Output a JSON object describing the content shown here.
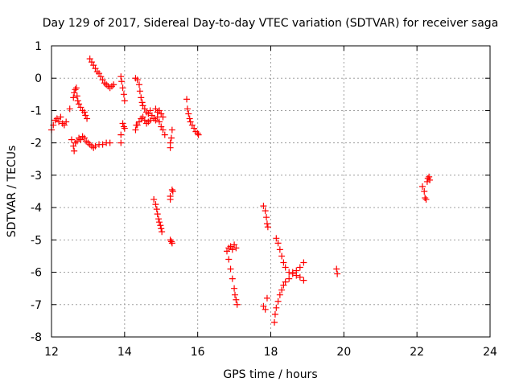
{
  "chart_data": {
    "type": "scatter",
    "title": "Day 129 of 2017, Sidereal Day-to-day VTEC variation (SDTVAR) for receiver saga",
    "xlabel": "GPS time / hours",
    "ylabel": "SDTVAR / TECUs",
    "xlim": [
      12,
      24
    ],
    "ylim": [
      -8,
      1
    ],
    "xticks": [
      12,
      14,
      16,
      18,
      20,
      22,
      24
    ],
    "yticks": [
      1,
      0,
      -1,
      -2,
      -3,
      -4,
      -5,
      -6,
      -7,
      -8
    ],
    "grid": true,
    "marker": "+",
    "color": "#ff0000",
    "series": [
      {
        "name": "SDTVAR",
        "points": [
          [
            12.0,
            -1.6
          ],
          [
            12.05,
            -1.45
          ],
          [
            12.1,
            -1.3
          ],
          [
            12.15,
            -1.25
          ],
          [
            12.2,
            -1.35
          ],
          [
            12.25,
            -1.2
          ],
          [
            12.3,
            -1.4
          ],
          [
            12.35,
            -1.45
          ],
          [
            12.4,
            -1.35
          ],
          [
            12.55,
            -1.9
          ],
          [
            12.6,
            -2.1
          ],
          [
            12.62,
            -2.25
          ],
          [
            12.65,
            -2.0
          ],
          [
            12.7,
            -1.95
          ],
          [
            12.75,
            -1.85
          ],
          [
            12.8,
            -1.9
          ],
          [
            12.85,
            -1.8
          ],
          [
            12.9,
            -1.85
          ],
          [
            12.95,
            -1.95
          ],
          [
            13.0,
            -2.0
          ],
          [
            13.05,
            -2.05
          ],
          [
            13.1,
            -2.1
          ],
          [
            13.15,
            -2.15
          ],
          [
            13.2,
            -2.1
          ],
          [
            13.3,
            -2.05
          ],
          [
            13.4,
            -2.05
          ],
          [
            13.5,
            -2.0
          ],
          [
            13.6,
            -2.0
          ],
          [
            12.6,
            -0.6
          ],
          [
            12.62,
            -0.45
          ],
          [
            12.65,
            -0.35
          ],
          [
            12.68,
            -0.3
          ],
          [
            12.7,
            -0.55
          ],
          [
            12.72,
            -0.7
          ],
          [
            12.75,
            -0.8
          ],
          [
            12.8,
            -0.9
          ],
          [
            12.85,
            -1.0
          ],
          [
            12.9,
            -1.05
          ],
          [
            12.93,
            -1.15
          ],
          [
            12.97,
            -1.25
          ],
          [
            12.5,
            -0.95
          ],
          [
            13.05,
            0.6
          ],
          [
            13.1,
            0.5
          ],
          [
            13.15,
            0.4
          ],
          [
            13.2,
            0.3
          ],
          [
            13.25,
            0.2
          ],
          [
            13.3,
            0.15
          ],
          [
            13.35,
            0.05
          ],
          [
            13.4,
            -0.05
          ],
          [
            13.45,
            -0.15
          ],
          [
            13.5,
            -0.2
          ],
          [
            13.55,
            -0.25
          ],
          [
            13.6,
            -0.3
          ],
          [
            13.65,
            -0.25
          ],
          [
            13.7,
            -0.2
          ],
          [
            13.9,
            0.05
          ],
          [
            13.92,
            -0.1
          ],
          [
            13.95,
            -0.3
          ],
          [
            13.98,
            -0.5
          ],
          [
            14.0,
            -0.7
          ],
          [
            13.95,
            -1.4
          ],
          [
            13.98,
            -1.5
          ],
          [
            14.0,
            -1.55
          ],
          [
            13.9,
            -1.75
          ],
          [
            13.9,
            -2.0
          ],
          [
            14.3,
            0.0
          ],
          [
            14.35,
            -0.05
          ],
          [
            14.4,
            -0.2
          ],
          [
            14.42,
            -0.4
          ],
          [
            14.45,
            -0.6
          ],
          [
            14.48,
            -0.75
          ],
          [
            14.5,
            -0.85
          ],
          [
            14.55,
            -0.95
          ],
          [
            14.6,
            -1.05
          ],
          [
            14.65,
            -1.1
          ],
          [
            14.7,
            -1.0
          ],
          [
            14.75,
            -1.15
          ],
          [
            14.8,
            -1.25
          ],
          [
            14.85,
            -1.3
          ],
          [
            14.9,
            -1.2
          ],
          [
            14.95,
            -1.0
          ],
          [
            15.0,
            -1.1
          ],
          [
            15.05,
            -1.2
          ],
          [
            14.35,
            -1.45
          ],
          [
            14.4,
            -1.35
          ],
          [
            14.45,
            -1.25
          ],
          [
            14.5,
            -1.2
          ],
          [
            14.55,
            -1.3
          ],
          [
            14.6,
            -1.4
          ],
          [
            14.65,
            -1.35
          ],
          [
            14.7,
            -1.3
          ],
          [
            14.3,
            -1.6
          ],
          [
            14.32,
            -1.45
          ],
          [
            14.85,
            -0.95
          ],
          [
            14.9,
            -1.05
          ],
          [
            14.95,
            -1.35
          ],
          [
            15.0,
            -1.5
          ],
          [
            15.05,
            -1.6
          ],
          [
            15.1,
            -1.75
          ],
          [
            15.3,
            -1.6
          ],
          [
            15.28,
            -1.85
          ],
          [
            15.25,
            -2.0
          ],
          [
            15.25,
            -2.15
          ],
          [
            15.3,
            -3.45
          ],
          [
            15.32,
            -3.5
          ],
          [
            15.25,
            -3.65
          ],
          [
            15.25,
            -3.75
          ],
          [
            15.25,
            -5.0
          ],
          [
            15.28,
            -5.05
          ],
          [
            15.3,
            -5.1
          ],
          [
            14.8,
            -3.75
          ],
          [
            14.85,
            -3.9
          ],
          [
            14.88,
            -4.05
          ],
          [
            14.9,
            -4.2
          ],
          [
            14.93,
            -4.35
          ],
          [
            14.95,
            -4.45
          ],
          [
            14.98,
            -4.55
          ],
          [
            15.0,
            -4.65
          ],
          [
            15.02,
            -4.75
          ],
          [
            15.7,
            -0.65
          ],
          [
            15.72,
            -0.95
          ],
          [
            15.75,
            -1.1
          ],
          [
            15.78,
            -1.25
          ],
          [
            15.8,
            -1.35
          ],
          [
            15.85,
            -1.45
          ],
          [
            15.9,
            -1.55
          ],
          [
            15.95,
            -1.65
          ],
          [
            16.0,
            -1.7
          ],
          [
            16.02,
            -1.75
          ],
          [
            16.8,
            -5.35
          ],
          [
            16.85,
            -5.25
          ],
          [
            16.9,
            -5.2
          ],
          [
            16.95,
            -5.3
          ],
          [
            17.0,
            -5.15
          ],
          [
            17.05,
            -5.25
          ],
          [
            16.85,
            -5.6
          ],
          [
            16.9,
            -5.9
          ],
          [
            16.95,
            -6.2
          ],
          [
            17.0,
            -6.5
          ],
          [
            17.02,
            -6.7
          ],
          [
            17.05,
            -6.85
          ],
          [
            17.08,
            -7.0
          ],
          [
            17.8,
            -3.95
          ],
          [
            17.85,
            -4.1
          ],
          [
            17.88,
            -4.3
          ],
          [
            17.9,
            -4.5
          ],
          [
            17.92,
            -4.6
          ],
          [
            17.8,
            -7.05
          ],
          [
            17.85,
            -7.15
          ],
          [
            17.9,
            -6.8
          ],
          [
            18.1,
            -7.55
          ],
          [
            18.12,
            -7.3
          ],
          [
            18.15,
            -7.1
          ],
          [
            18.2,
            -6.9
          ],
          [
            18.25,
            -6.7
          ],
          [
            18.3,
            -6.55
          ],
          [
            18.35,
            -6.4
          ],
          [
            18.4,
            -6.3
          ],
          [
            18.5,
            -6.2
          ],
          [
            18.6,
            -6.0
          ],
          [
            18.7,
            -5.95
          ],
          [
            18.8,
            -5.85
          ],
          [
            18.9,
            -5.7
          ],
          [
            18.15,
            -4.95
          ],
          [
            18.2,
            -5.1
          ],
          [
            18.25,
            -5.3
          ],
          [
            18.3,
            -5.5
          ],
          [
            18.35,
            -5.7
          ],
          [
            18.4,
            -5.85
          ],
          [
            18.5,
            -6.0
          ],
          [
            18.6,
            -6.05
          ],
          [
            18.7,
            -6.1
          ],
          [
            18.8,
            -6.15
          ],
          [
            18.9,
            -6.25
          ],
          [
            19.8,
            -5.9
          ],
          [
            19.82,
            -6.05
          ],
          [
            22.15,
            -3.35
          ],
          [
            22.2,
            -3.5
          ],
          [
            22.22,
            -3.7
          ],
          [
            22.25,
            -3.75
          ],
          [
            22.28,
            -3.2
          ],
          [
            22.3,
            -3.1
          ],
          [
            22.33,
            -3.05
          ],
          [
            22.35,
            -3.15
          ]
        ]
      }
    ]
  }
}
